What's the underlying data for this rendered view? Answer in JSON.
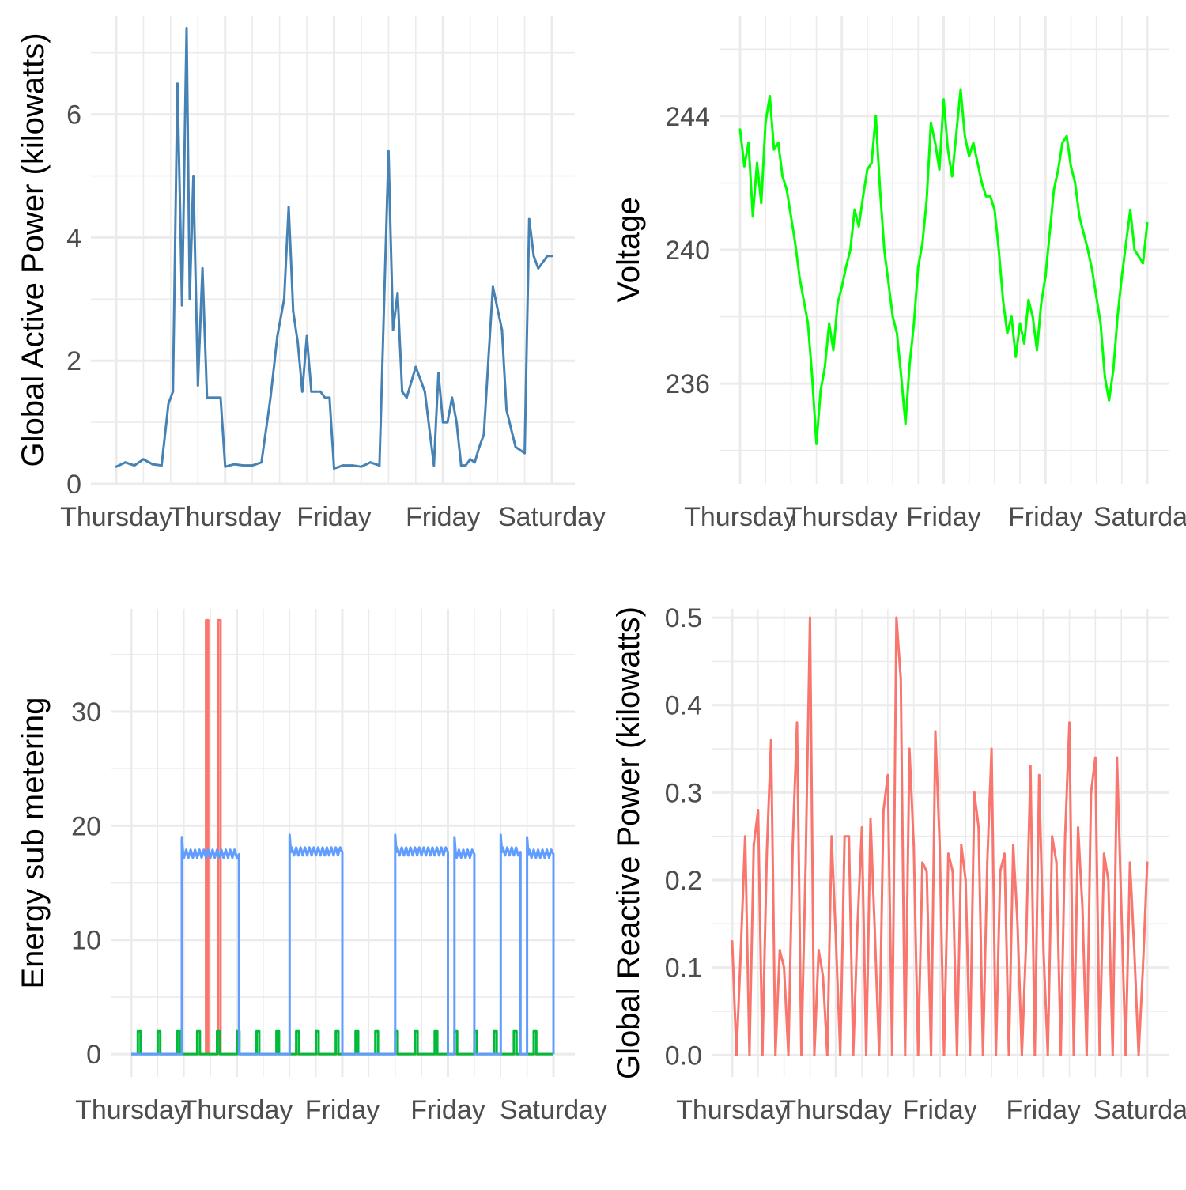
{
  "chart_data": [
    {
      "type": "line",
      "title": "",
      "xlabel": "",
      "ylabel": "Global Active Power (kilowatts)",
      "x_tick_labels": [
        "Thursday",
        "Thursday",
        "Friday",
        "Friday",
        "Saturday"
      ],
      "x_tick_note": "Ticks at 12-hour intervals; labels show weekday name only",
      "yticks": [
        0,
        2,
        4,
        6
      ],
      "ylim": [
        0,
        7.6
      ],
      "grid": true,
      "series": [
        {
          "color": "#4682b4",
          "x_hours": [
            0,
            2,
            4,
            6,
            8,
            10,
            11.5,
            12.5,
            13.5,
            14.5,
            15.5,
            16.2,
            17,
            18,
            19,
            20,
            21,
            22,
            23,
            24,
            26,
            28,
            30,
            32,
            34,
            35.5,
            37,
            38,
            39,
            40,
            41,
            42,
            43,
            44,
            45,
            46,
            47,
            48,
            50,
            52,
            54,
            56,
            58,
            60,
            61,
            62,
            63,
            64,
            66,
            68,
            70,
            71,
            72,
            73,
            74,
            75,
            76,
            77,
            78,
            79,
            80,
            81,
            83,
            85,
            86,
            88,
            89,
            90,
            91,
            92,
            93,
            94,
            95,
            96
          ],
          "values": [
            0.28,
            0.35,
            0.3,
            0.4,
            0.32,
            0.3,
            1.3,
            1.5,
            6.5,
            2.9,
            7.4,
            3.0,
            5.0,
            1.6,
            3.5,
            1.4,
            1.4,
            1.4,
            1.4,
            0.28,
            0.32,
            0.3,
            0.3,
            0.35,
            1.4,
            2.4,
            3.0,
            4.5,
            2.8,
            2.3,
            1.5,
            2.4,
            1.5,
            1.5,
            1.5,
            1.4,
            1.4,
            0.25,
            0.3,
            0.3,
            0.28,
            0.35,
            0.3,
            5.4,
            2.5,
            3.1,
            1.5,
            1.4,
            1.9,
            1.5,
            0.3,
            1.8,
            1.0,
            1.0,
            1.4,
            1.0,
            0.3,
            0.3,
            0.4,
            0.35,
            0.6,
            0.8,
            3.2,
            2.5,
            1.2,
            0.6,
            0.55,
            0.5,
            4.3,
            3.7,
            3.5,
            3.6,
            3.7,
            3.7
          ]
        }
      ]
    },
    {
      "type": "line",
      "title": "",
      "xlabel": "",
      "ylabel": "Voltage",
      "x_tick_labels": [
        "Thursday",
        "Thursday",
        "Friday",
        "Friday",
        "Saturday"
      ],
      "x_tick_note": "Ticks at 12-hour intervals; labels show weekday name only",
      "yticks": [
        236,
        240,
        244
      ],
      "ylim": [
        233.0,
        247.0
      ],
      "grid": true,
      "series": [
        {
          "color": "#00ff00",
          "x_hours": [
            0,
            1,
            2,
            3,
            4,
            5,
            6,
            7,
            8,
            9,
            10,
            11,
            12,
            13,
            14,
            15,
            16,
            17,
            18,
            19,
            20,
            21,
            22,
            23,
            24,
            25,
            26,
            27,
            28,
            29,
            30,
            31,
            32,
            33,
            34,
            35,
            36,
            37,
            38,
            39,
            40,
            41,
            42,
            43,
            44,
            45,
            46,
            47,
            48,
            49,
            50,
            51,
            52,
            53,
            54,
            55,
            56,
            57,
            58,
            59,
            60,
            61,
            62,
            63,
            64,
            65,
            66,
            67,
            68,
            69,
            70,
            71,
            72,
            73,
            74,
            75,
            76,
            77,
            78,
            79,
            80,
            81,
            82,
            83,
            84,
            85,
            86,
            87,
            88,
            89,
            90,
            91,
            92,
            93,
            94,
            95,
            96
          ],
          "values": [
            243.6,
            242.5,
            243.2,
            241.0,
            242.6,
            241.4,
            243.8,
            244.6,
            243.0,
            243.2,
            242.2,
            241.8,
            241.0,
            240.2,
            239.2,
            238.5,
            237.8,
            236.2,
            234.2,
            235.8,
            236.5,
            237.8,
            237.0,
            238.4,
            238.9,
            239.5,
            240.0,
            241.2,
            240.7,
            241.6,
            242.4,
            242.6,
            244.0,
            241.8,
            240.0,
            239.0,
            238.0,
            237.5,
            236.2,
            234.8,
            236.6,
            237.8,
            239.5,
            240.2,
            241.5,
            243.8,
            243.2,
            242.4,
            244.5,
            243.0,
            242.2,
            243.5,
            244.8,
            243.4,
            242.8,
            243.2,
            242.6,
            242.0,
            241.6,
            241.6,
            241.2,
            240.0,
            238.5,
            237.5,
            238.0,
            236.8,
            237.8,
            237.2,
            238.5,
            238.0,
            237.0,
            238.4,
            239.2,
            240.5,
            241.8,
            242.4,
            243.2,
            243.4,
            242.5,
            242.0,
            241.0,
            240.5,
            240.0,
            239.4,
            238.6,
            237.8,
            236.2,
            235.5,
            236.4,
            238.0,
            239.2,
            240.2,
            241.2,
            240.0,
            239.8,
            239.6,
            240.8
          ]
        }
      ]
    },
    {
      "type": "line",
      "title": "",
      "xlabel": "",
      "ylabel": "Energy sub metering",
      "x_tick_labels": [
        "Thursday",
        "Thursday",
        "Friday",
        "Friday",
        "Saturday"
      ],
      "x_tick_note": "Ticks at 12-hour intervals; labels show weekday name only",
      "yticks": [
        0,
        10,
        20,
        30
      ],
      "ylim": [
        -2,
        39
      ],
      "grid": true,
      "series": [
        {
          "color": "#f8766d",
          "spikes": [
            {
              "start_hour": 17.0,
              "end_hour": 17.5,
              "value": 38
            },
            {
              "start_hour": 19.7,
              "end_hour": 20.3,
              "value": 38
            }
          ],
          "baseline": 0
        },
        {
          "color": "#00ba38",
          "baseline": 0,
          "periodic_pulses": {
            "value": 2,
            "period_hours": 4.5,
            "first_hour": 1.5,
            "width_hours": 0.6,
            "last_hour": 95.5
          }
        },
        {
          "color": "#619cff",
          "baseline": 0,
          "blocks": [
            {
              "start_hour": 11.5,
              "end_hour": 24.5,
              "value": 17.5
            },
            {
              "start_hour": 36.0,
              "end_hour": 48.0,
              "value": 17.7
            },
            {
              "start_hour": 60.0,
              "end_hour": 72.0,
              "value": 17.7
            },
            {
              "start_hour": 73.5,
              "end_hour": 78.0,
              "value": 17.5
            },
            {
              "start_hour": 84.0,
              "end_hour": 88.5,
              "value": 17.7
            },
            {
              "start_hour": 90.0,
              "end_hour": 96.0,
              "value": 17.5
            }
          ]
        }
      ]
    },
    {
      "type": "line",
      "title": "",
      "xlabel": "",
      "ylabel": "Global Reactive Power (kilowatts)",
      "x_tick_labels": [
        "Thursday",
        "Thursday",
        "Friday",
        "Friday",
        "Saturday"
      ],
      "x_tick_note": "Ticks at 12-hour intervals; labels show weekday name only",
      "yticks": [
        0.0,
        0.1,
        0.2,
        0.3,
        0.4,
        0.5
      ],
      "ylim": [
        -0.025,
        0.51
      ],
      "grid": true,
      "series": [
        {
          "color": "#f8766d",
          "x_hours": [
            0,
            1,
            2,
            3,
            4,
            5,
            6,
            7,
            8,
            9,
            10,
            11,
            12,
            13,
            14,
            15,
            16,
            17,
            18,
            19,
            20,
            21,
            22,
            23,
            24,
            25,
            26,
            27,
            28,
            29,
            30,
            31,
            32,
            33,
            34,
            35,
            36,
            37,
            38,
            39,
            40,
            41,
            42,
            43,
            44,
            45,
            46,
            47,
            48,
            49,
            50,
            51,
            52,
            53,
            54,
            55,
            56,
            57,
            58,
            59,
            60,
            61,
            62,
            63,
            64,
            65,
            66,
            67,
            68,
            69,
            70,
            71,
            72,
            73,
            74,
            75,
            76,
            77,
            78,
            79,
            80,
            81,
            82,
            83,
            84,
            85,
            86,
            87,
            88,
            89,
            90,
            91,
            92,
            93,
            94,
            95,
            96
          ],
          "values": [
            0.13,
            0.0,
            0.12,
            0.25,
            0.0,
            0.24,
            0.28,
            0.0,
            0.23,
            0.36,
            0.0,
            0.12,
            0.1,
            0.0,
            0.24,
            0.38,
            0.0,
            0.22,
            0.5,
            0.0,
            0.12,
            0.09,
            0.0,
            0.25,
            0.13,
            0.0,
            0.25,
            0.25,
            0.0,
            0.15,
            0.26,
            0.0,
            0.27,
            0.14,
            0.0,
            0.28,
            0.32,
            0.0,
            0.5,
            0.43,
            0.0,
            0.35,
            0.24,
            0.0,
            0.22,
            0.21,
            0.0,
            0.37,
            0.24,
            0.0,
            0.23,
            0.21,
            0.0,
            0.24,
            0.2,
            0.0,
            0.3,
            0.26,
            0.0,
            0.22,
            0.35,
            0.0,
            0.21,
            0.23,
            0.0,
            0.24,
            0.15,
            0.0,
            0.13,
            0.33,
            0.0,
            0.32,
            0.12,
            0.0,
            0.25,
            0.22,
            0.0,
            0.25,
            0.38,
            0.0,
            0.26,
            0.17,
            0.0,
            0.3,
            0.34,
            0.0,
            0.23,
            0.2,
            0.0,
            0.34,
            0.17,
            0.0,
            0.22,
            0.12,
            0.0,
            0.1,
            0.22
          ]
        }
      ]
    }
  ]
}
